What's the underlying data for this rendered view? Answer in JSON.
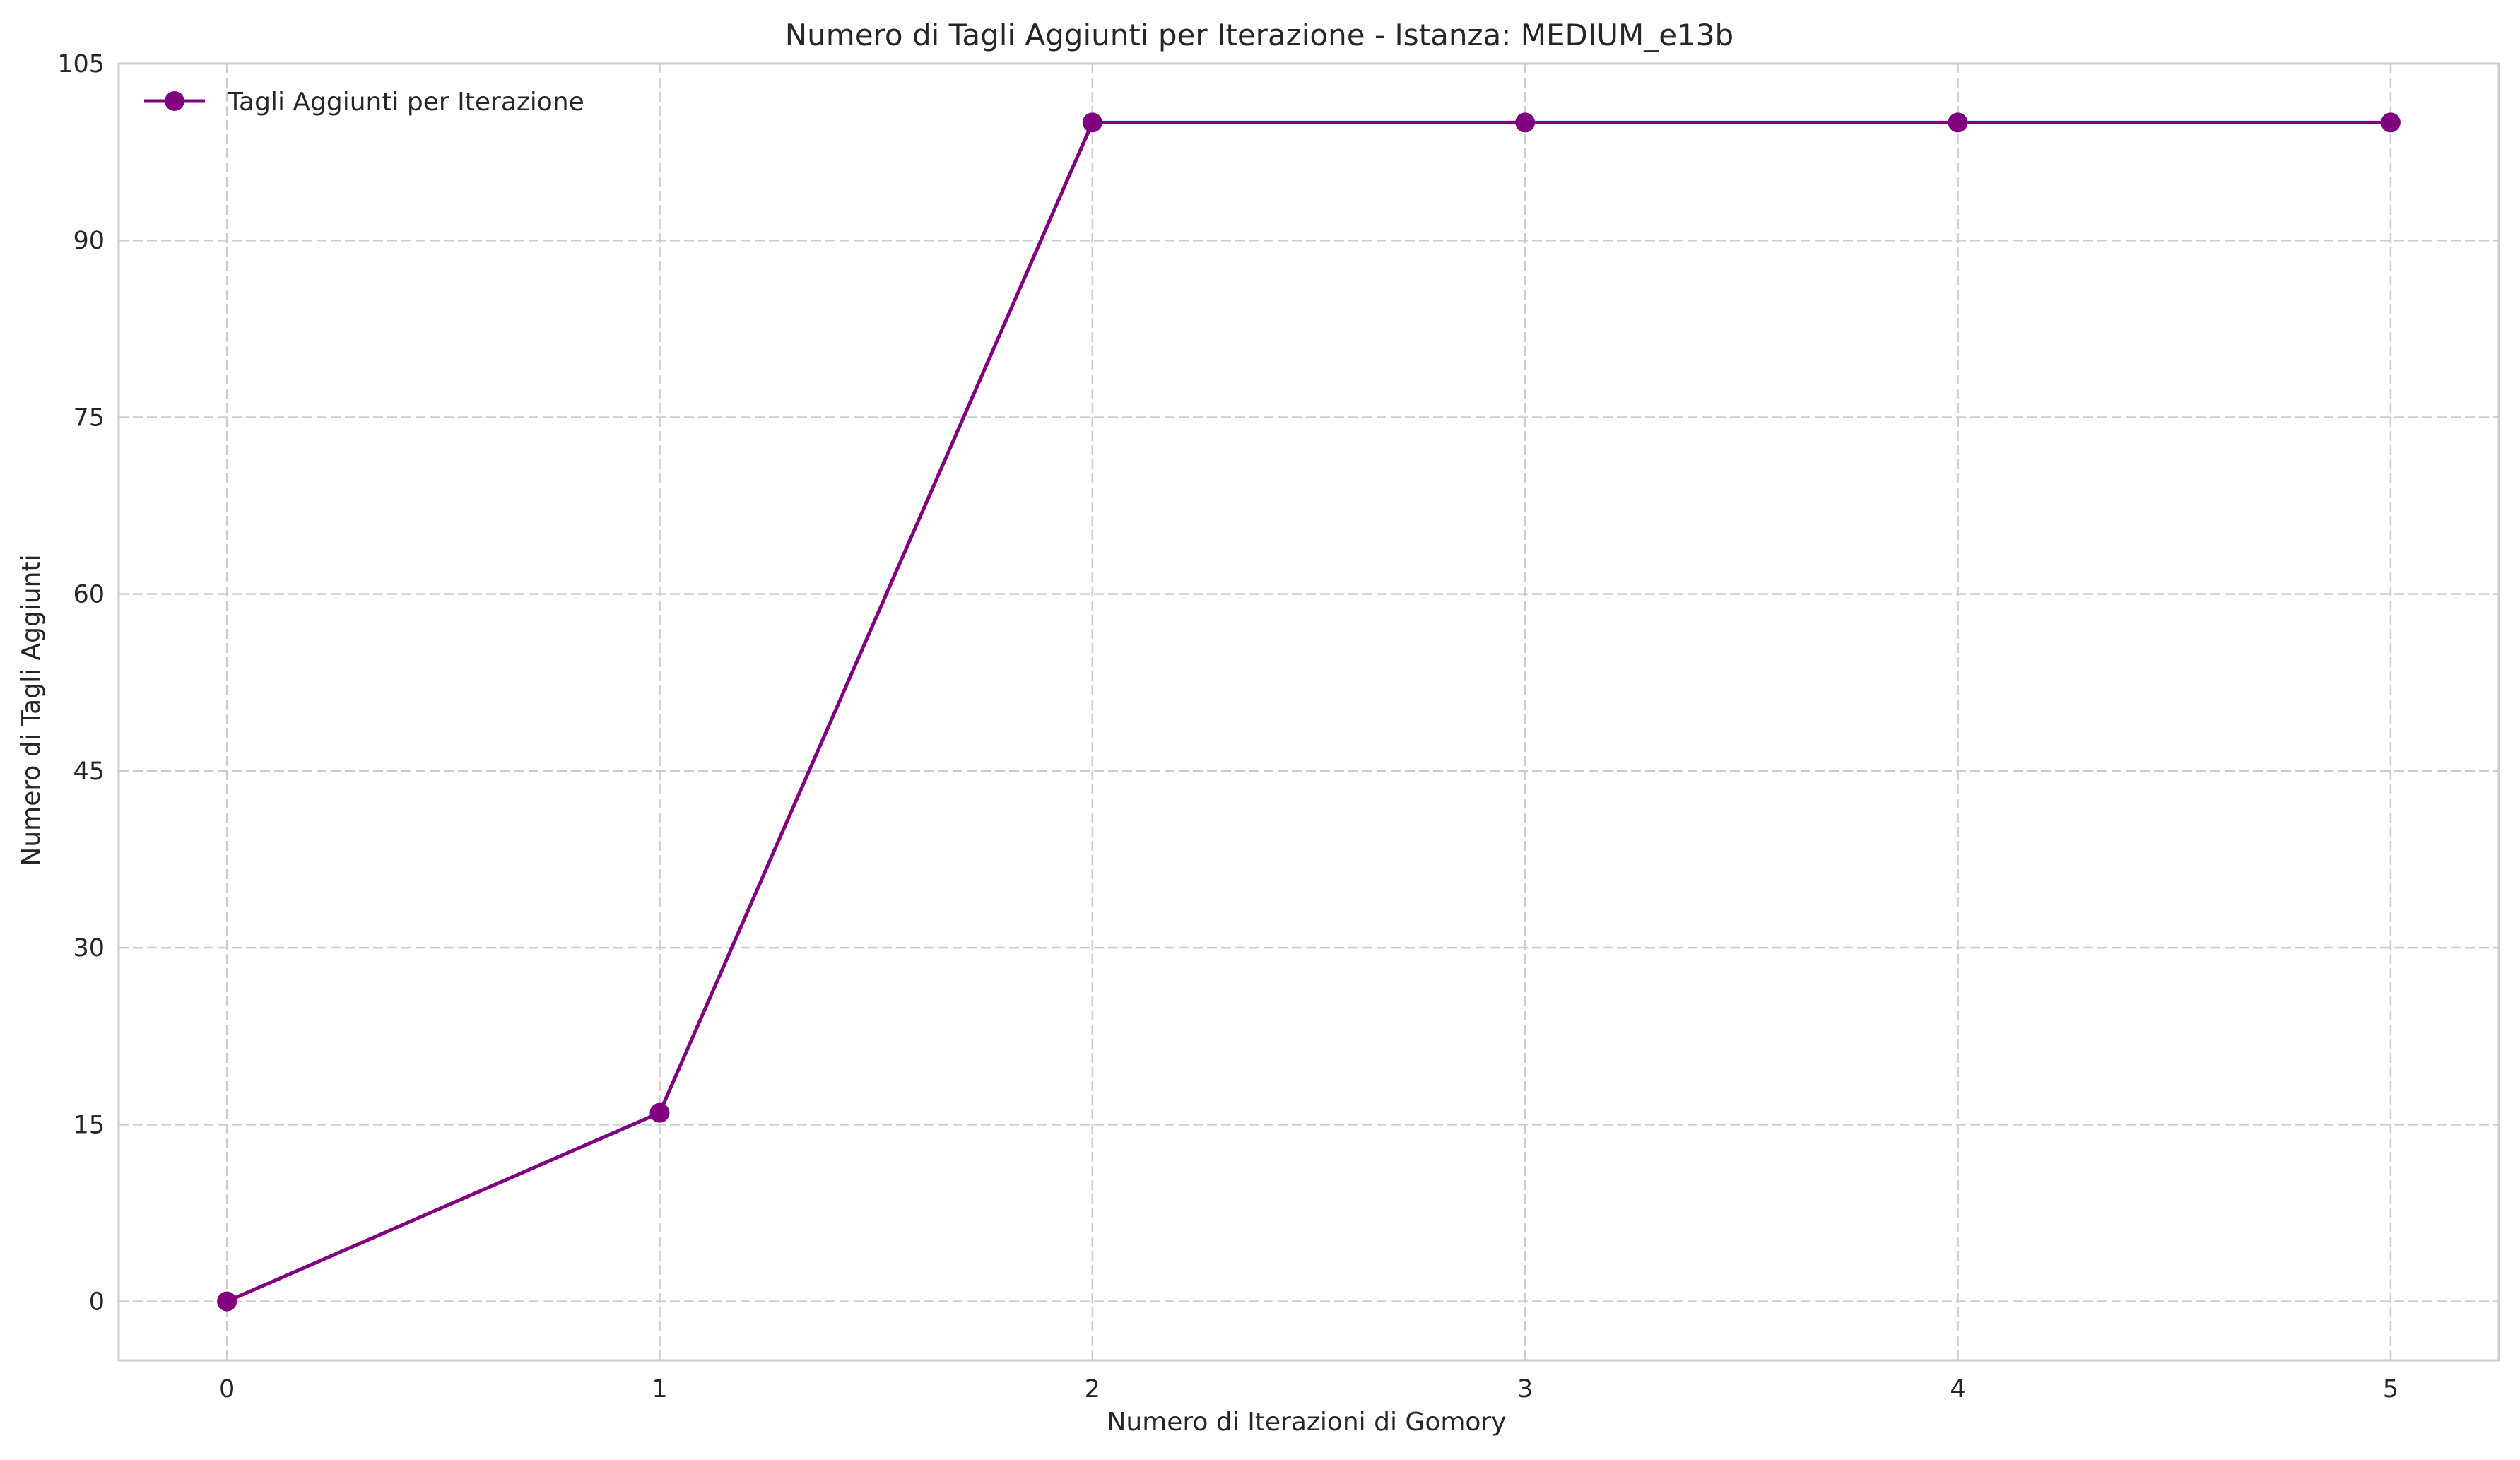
{
  "chart_data": {
    "type": "line",
    "title": "Numero di Tagli Aggiunti per Iterazione - Istanza: MEDIUM_e13b",
    "xlabel": "Numero di Iterazioni di Gomory",
    "ylabel": "Numero di Tagli Aggiunti",
    "x": [
      0,
      1,
      2,
      3,
      4,
      5
    ],
    "xlim": [
      -0.25,
      5.25
    ],
    "ylim": [
      -5,
      105
    ],
    "xticks": [
      0,
      1,
      2,
      3,
      4,
      5
    ],
    "yticks": [
      0,
      15,
      30,
      45,
      60,
      75,
      90,
      105
    ],
    "grid": true,
    "legend": "top-left",
    "series": [
      {
        "name": "Tagli Aggiunti per Iterazione",
        "values": [
          0,
          16,
          100,
          100,
          100,
          100
        ],
        "color": "#800080",
        "marker": "circle"
      }
    ]
  }
}
